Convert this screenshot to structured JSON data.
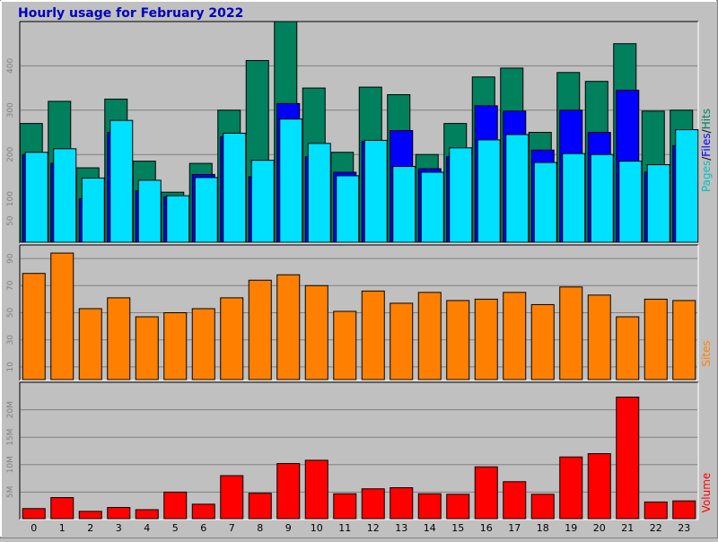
{
  "chart_data": {
    "type": "bar",
    "title": "Hourly usage for February 2022",
    "categories": [
      "0",
      "1",
      "2",
      "3",
      "4",
      "5",
      "6",
      "7",
      "8",
      "9",
      "10",
      "11",
      "12",
      "13",
      "14",
      "15",
      "16",
      "17",
      "18",
      "19",
      "20",
      "21",
      "22",
      "23"
    ],
    "panels": [
      {
        "name": "requests",
        "ylim": [
          0,
          500
        ],
        "yticks": [
          50,
          100,
          200,
          300,
          400
        ],
        "series": [
          {
            "name": "Hits",
            "color": "#00805c",
            "values": [
              270,
              320,
              170,
              325,
              185,
              115,
              180,
              300,
              412,
              500,
              350,
              205,
              352,
              335,
              200,
              270,
              375,
              395,
              250,
              385,
              365,
              450,
              298,
              300
            ]
          },
          {
            "name": "Files",
            "color": "#0000ff",
            "values": [
              200,
              180,
              100,
              250,
              118,
              105,
              155,
              240,
              150,
              315,
              195,
              160,
              230,
              254,
              168,
              195,
              310,
              298,
              210,
              300,
              250,
              345,
              160,
              220
            ]
          },
          {
            "name": "Pages",
            "color": "#00e0ff",
            "values": [
              205,
              213,
              147,
              277,
              142,
              107,
              148,
              248,
              187,
              280,
              225,
              152,
              232,
              173,
              160,
              215,
              233,
              245,
              182,
              202,
              200,
              185,
              177,
              256
            ]
          }
        ],
        "legend_label_parts": [
          {
            "text": "Pages",
            "color": "#00c0c0"
          },
          {
            "text": "/",
            "color": "#000000"
          },
          {
            "text": "Files",
            "color": "#0000ff"
          },
          {
            "text": "/",
            "color": "#000000"
          },
          {
            "text": "Hits",
            "color": "#00805c"
          }
        ]
      },
      {
        "name": "sites",
        "ylabel": "Sites",
        "ylabel_color": "#ff8000",
        "ylim": [
          0,
          100
        ],
        "yticks": [
          10,
          30,
          50,
          70,
          90
        ],
        "series": [
          {
            "name": "Sites",
            "color": "#ff8000",
            "values": [
              79,
              94,
              53,
              61,
              47,
              50,
              53,
              61,
              74,
              78,
              70,
              51,
              66,
              57,
              65,
              59,
              60,
              65,
              56,
              69,
              63,
              47,
              60,
              59
            ]
          }
        ]
      },
      {
        "name": "volume",
        "ylabel": "Volume",
        "ylabel_color": "#ff0000",
        "ylim": [
          0,
          25000000
        ],
        "yticks": [
          5000000,
          10000000,
          15000000,
          20000000
        ],
        "ytick_labels": [
          "5M",
          "10M",
          "15M",
          "20M"
        ],
        "series": [
          {
            "name": "Volume",
            "color": "#ff0000",
            "values": [
              2000000,
              4000000,
              1500000,
              2200000,
              1800000,
              5000000,
              2800000,
              8000000,
              4800000,
              10200000,
              10800000,
              4700000,
              5600000,
              5800000,
              4700000,
              4600000,
              9600000,
              6900000,
              4600000,
              11400000,
              12000000,
              22300000,
              3200000,
              3400000
            ]
          }
        ]
      }
    ],
    "grid": true,
    "title_color": "#0000c0"
  }
}
